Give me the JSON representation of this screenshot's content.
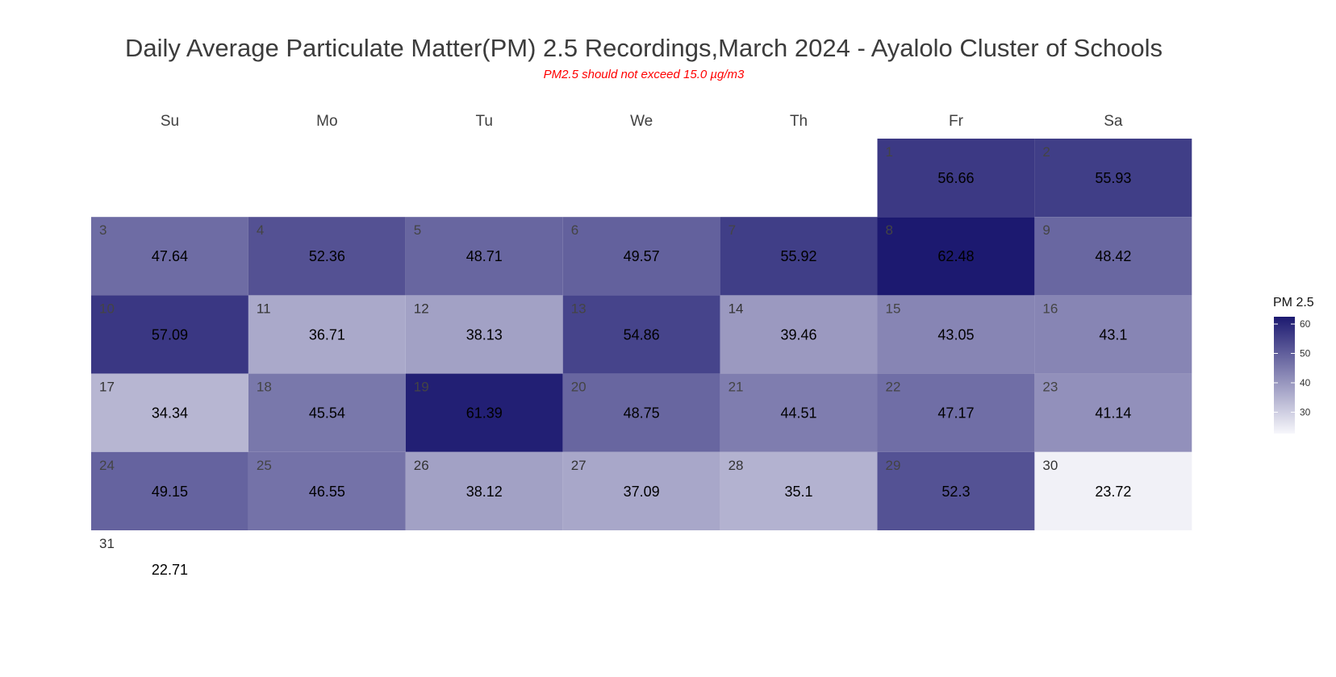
{
  "chart_data": {
    "type": "heatmap",
    "title": "Daily Average Particulate Matter(PM) 2.5 Recordings,March 2024 - Ayalolo Cluster of Schools",
    "subtitle": "PM2.5 should not exceed 15.0 µg/m3",
    "weekdays": [
      "Su",
      "Mo",
      "Tu",
      "We",
      "Th",
      "Fr",
      "Sa"
    ],
    "first_weekday_index": 5,
    "days": [
      1,
      2,
      3,
      4,
      5,
      6,
      7,
      8,
      9,
      10,
      11,
      12,
      13,
      14,
      15,
      16,
      17,
      18,
      19,
      20,
      21,
      22,
      23,
      24,
      25,
      26,
      27,
      28,
      29,
      30,
      31
    ],
    "values": [
      56.66,
      55.93,
      47.64,
      52.36,
      48.71,
      49.57,
      55.92,
      62.48,
      48.42,
      57.09,
      36.71,
      38.13,
      54.86,
      39.46,
      43.05,
      43.1,
      34.34,
      45.54,
      61.39,
      48.75,
      44.51,
      47.17,
      41.14,
      49.15,
      46.55,
      38.12,
      37.09,
      35.1,
      52.3,
      23.72,
      22.71
    ],
    "value_labels": [
      "56.66",
      "55.93",
      "47.64",
      "52.36",
      "48.71",
      "49.57",
      "55.92",
      "62.48",
      "48.42",
      "57.09",
      "36.71",
      "38.13",
      "54.86",
      "39.46",
      "43.05",
      "43.1",
      "34.34",
      "45.54",
      "61.39",
      "48.75",
      "44.51",
      "47.17",
      "41.14",
      "49.15",
      "46.55",
      "38.12",
      "37.09",
      "35.1",
      "52.3",
      "23.72",
      "22.71"
    ],
    "legend": {
      "title": "PM 2.5",
      "ticks": [
        60,
        50,
        40,
        30
      ],
      "tick_labels": [
        "60",
        "50",
        "40",
        "30"
      ],
      "range": [
        22.71,
        62.48
      ],
      "position": "right"
    },
    "color_low": "#f7f7fb",
    "color_high": "#1c1970",
    "empty_cell_color": "#ffffff"
  }
}
